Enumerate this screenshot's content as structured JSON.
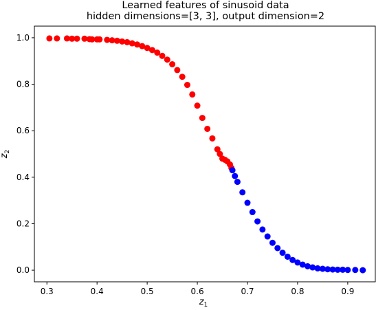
{
  "chart_data": {
    "type": "scatter",
    "title": "Learned features of sinusoid data",
    "subtitle": "hidden dimensions=[3, 3], output dimension=2",
    "xlabel": "z",
    "xlabel_sub": "1",
    "ylabel": "z",
    "ylabel_sub": "2",
    "xlim": [
      0.275,
      0.955
    ],
    "ylim": [
      -0.05,
      1.05
    ],
    "xticks": [
      0.3,
      0.4,
      0.5,
      0.6,
      0.7,
      0.8,
      0.9
    ],
    "yticks": [
      0.0,
      0.2,
      0.4,
      0.6,
      0.8,
      1.0
    ],
    "xtick_labels": [
      "0.3",
      "0.4",
      "0.5",
      "0.6",
      "0.7",
      "0.8",
      "0.9"
    ],
    "ytick_labels": [
      "0.0",
      "0.2",
      "0.4",
      "0.6",
      "0.8",
      "1.0"
    ],
    "grid": false,
    "series": [
      {
        "color": "#ff0000",
        "points": [
          [
            0.305,
            0.997
          ],
          [
            0.32,
            0.997
          ],
          [
            0.34,
            0.997
          ],
          [
            0.35,
            0.996
          ],
          [
            0.36,
            0.996
          ],
          [
            0.375,
            0.996
          ],
          [
            0.385,
            0.994
          ],
          [
            0.39,
            0.993
          ],
          [
            0.4,
            0.993
          ],
          [
            0.405,
            0.993
          ],
          [
            0.42,
            0.991
          ],
          [
            0.43,
            0.989
          ],
          [
            0.44,
            0.987
          ],
          [
            0.45,
            0.984
          ],
          [
            0.46,
            0.981
          ],
          [
            0.47,
            0.976
          ],
          [
            0.48,
            0.971
          ],
          [
            0.49,
            0.964
          ],
          [
            0.5,
            0.956
          ],
          [
            0.51,
            0.947
          ],
          [
            0.52,
            0.936
          ],
          [
            0.53,
            0.922
          ],
          [
            0.54,
            0.906
          ],
          [
            0.55,
            0.886
          ],
          [
            0.56,
            0.861
          ],
          [
            0.57,
            0.832
          ],
          [
            0.58,
            0.797
          ],
          [
            0.59,
            0.756
          ],
          [
            0.6,
            0.708
          ],
          [
            0.61,
            0.655
          ],
          [
            0.62,
            0.608
          ],
          [
            0.63,
            0.567
          ],
          [
            0.64,
            0.52
          ],
          [
            0.645,
            0.5
          ],
          [
            0.65,
            0.48
          ],
          [
            0.655,
            0.475
          ],
          [
            0.66,
            0.468
          ],
          [
            0.665,
            0.455
          ],
          [
            0.668,
            0.44
          ]
        ]
      },
      {
        "color": "#0000ff",
        "points": [
          [
            0.67,
            0.43
          ],
          [
            0.675,
            0.405
          ],
          [
            0.68,
            0.38
          ],
          [
            0.69,
            0.335
          ],
          [
            0.7,
            0.29
          ],
          [
            0.71,
            0.25
          ],
          [
            0.72,
            0.21
          ],
          [
            0.73,
            0.175
          ],
          [
            0.74,
            0.145
          ],
          [
            0.75,
            0.118
          ],
          [
            0.76,
            0.095
          ],
          [
            0.77,
            0.075
          ],
          [
            0.78,
            0.058
          ],
          [
            0.79,
            0.044
          ],
          [
            0.8,
            0.033
          ],
          [
            0.81,
            0.024
          ],
          [
            0.82,
            0.017
          ],
          [
            0.83,
            0.012
          ],
          [
            0.84,
            0.008
          ],
          [
            0.85,
            0.006
          ],
          [
            0.86,
            0.004
          ],
          [
            0.87,
            0.003
          ],
          [
            0.88,
            0.002
          ],
          [
            0.89,
            0.002
          ],
          [
            0.9,
            0.001
          ],
          [
            0.915,
            0.001
          ],
          [
            0.93,
            0.0
          ]
        ]
      }
    ]
  }
}
